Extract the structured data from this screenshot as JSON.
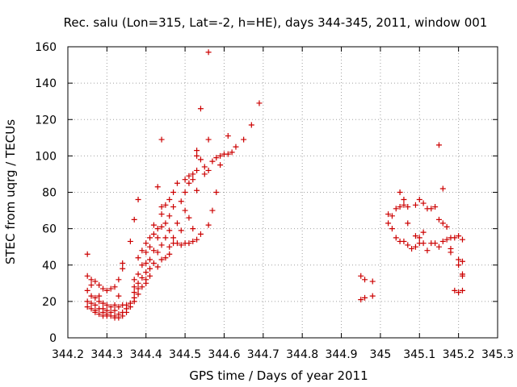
{
  "chart_data": {
    "type": "scatter",
    "title": "Rec. salu (Lon=315, Lat=-2, h=HE), days 344-345, 2011, window 001",
    "xlabel": "GPS time / Days of year 2011",
    "ylabel": "STEC from uqrg / TECUs",
    "xlim": [
      344.2,
      345.3
    ],
    "ylim": [
      0,
      160
    ],
    "xticks": [
      "344.2",
      "344.3",
      "344.4",
      "344.5",
      "344.6",
      "344.7",
      "344.8",
      "344.9",
      "345",
      "345.1",
      "345.2",
      "345.3"
    ],
    "xtick_values": [
      344.2,
      344.3,
      344.4,
      344.5,
      344.6,
      344.7,
      344.8,
      344.9,
      345.0,
      345.1,
      345.2,
      345.3
    ],
    "yticks": [
      "0",
      "20",
      "40",
      "60",
      "80",
      "100",
      "120",
      "140",
      "160"
    ],
    "ytick_values": [
      0,
      20,
      40,
      60,
      80,
      100,
      120,
      140,
      160
    ],
    "grid": true,
    "marker": "plus",
    "color": "#cc0000",
    "points": [
      [
        344.25,
        46
      ],
      [
        344.25,
        34
      ],
      [
        344.25,
        26
      ],
      [
        344.25,
        20
      ],
      [
        344.25,
        17
      ],
      [
        344.26,
        32
      ],
      [
        344.26,
        29
      ],
      [
        344.26,
        23
      ],
      [
        344.26,
        19
      ],
      [
        344.26,
        16
      ],
      [
        344.27,
        31
      ],
      [
        344.27,
        22
      ],
      [
        344.27,
        18
      ],
      [
        344.27,
        15
      ],
      [
        344.27,
        14
      ],
      [
        344.28,
        29
      ],
      [
        344.28,
        23
      ],
      [
        344.28,
        20
      ],
      [
        344.28,
        16
      ],
      [
        344.28,
        13
      ],
      [
        344.29,
        27
      ],
      [
        344.29,
        19
      ],
      [
        344.29,
        16
      ],
      [
        344.29,
        14
      ],
      [
        344.29,
        12
      ],
      [
        344.3,
        26
      ],
      [
        344.3,
        18
      ],
      [
        344.3,
        15
      ],
      [
        344.3,
        13
      ],
      [
        344.3,
        12
      ],
      [
        344.31,
        27
      ],
      [
        344.31,
        17
      ],
      [
        344.31,
        14
      ],
      [
        344.31,
        12
      ],
      [
        344.32,
        28
      ],
      [
        344.32,
        18
      ],
      [
        344.32,
        15
      ],
      [
        344.32,
        12
      ],
      [
        344.32,
        11
      ],
      [
        344.33,
        32
      ],
      [
        344.33,
        23
      ],
      [
        344.33,
        17
      ],
      [
        344.33,
        13
      ],
      [
        344.33,
        11
      ],
      [
        344.34,
        41
      ],
      [
        344.34,
        38
      ],
      [
        344.34,
        18
      ],
      [
        344.34,
        14
      ],
      [
        344.34,
        12
      ],
      [
        344.35,
        18
      ],
      [
        344.35,
        16
      ],
      [
        344.35,
        14
      ],
      [
        344.36,
        53
      ],
      [
        344.36,
        19
      ],
      [
        344.36,
        17
      ],
      [
        344.37,
        65
      ],
      [
        344.37,
        32
      ],
      [
        344.37,
        28
      ],
      [
        344.37,
        25
      ],
      [
        344.37,
        22
      ],
      [
        344.37,
        20
      ],
      [
        344.38,
        76
      ],
      [
        344.38,
        44
      ],
      [
        344.38,
        35
      ],
      [
        344.38,
        30
      ],
      [
        344.38,
        27
      ],
      [
        344.38,
        24
      ],
      [
        344.39,
        48
      ],
      [
        344.39,
        40
      ],
      [
        344.39,
        33
      ],
      [
        344.39,
        28
      ],
      [
        344.4,
        52
      ],
      [
        344.4,
        47
      ],
      [
        344.4,
        41
      ],
      [
        344.4,
        36
      ],
      [
        344.4,
        32
      ],
      [
        344.4,
        30
      ],
      [
        344.41,
        55
      ],
      [
        344.41,
        50
      ],
      [
        344.41,
        43
      ],
      [
        344.41,
        38
      ],
      [
        344.41,
        34
      ],
      [
        344.42,
        62
      ],
      [
        344.42,
        57
      ],
      [
        344.42,
        48
      ],
      [
        344.42,
        41
      ],
      [
        344.43,
        83
      ],
      [
        344.43,
        60
      ],
      [
        344.43,
        55
      ],
      [
        344.43,
        47
      ],
      [
        344.43,
        39
      ],
      [
        344.44,
        109
      ],
      [
        344.44,
        72
      ],
      [
        344.44,
        68
      ],
      [
        344.44,
        61
      ],
      [
        344.44,
        51
      ],
      [
        344.44,
        43
      ],
      [
        344.45,
        73
      ],
      [
        344.45,
        63
      ],
      [
        344.45,
        55
      ],
      [
        344.45,
        44
      ],
      [
        344.46,
        76
      ],
      [
        344.46,
        67
      ],
      [
        344.46,
        59
      ],
      [
        344.46,
        50
      ],
      [
        344.46,
        46
      ],
      [
        344.47,
        80
      ],
      [
        344.47,
        72
      ],
      [
        344.47,
        55
      ],
      [
        344.47,
        52
      ],
      [
        344.48,
        85
      ],
      [
        344.48,
        63
      ],
      [
        344.48,
        52
      ],
      [
        344.49,
        75
      ],
      [
        344.49,
        59
      ],
      [
        344.49,
        51
      ],
      [
        344.5,
        87
      ],
      [
        344.5,
        80
      ],
      [
        344.5,
        70
      ],
      [
        344.5,
        52
      ],
      [
        344.51,
        89
      ],
      [
        344.51,
        85
      ],
      [
        344.51,
        66
      ],
      [
        344.51,
        52
      ],
      [
        344.52,
        90
      ],
      [
        344.52,
        87
      ],
      [
        344.52,
        60
      ],
      [
        344.52,
        53
      ],
      [
        344.53,
        103
      ],
      [
        344.53,
        100
      ],
      [
        344.53,
        92
      ],
      [
        344.53,
        81
      ],
      [
        344.53,
        54
      ],
      [
        344.54,
        126
      ],
      [
        344.54,
        98
      ],
      [
        344.54,
        57
      ],
      [
        344.55,
        94
      ],
      [
        344.55,
        90
      ],
      [
        344.56,
        157
      ],
      [
        344.56,
        109
      ],
      [
        344.56,
        92
      ],
      [
        344.56,
        62
      ],
      [
        344.57,
        97
      ],
      [
        344.57,
        70
      ],
      [
        344.58,
        99
      ],
      [
        344.58,
        80
      ],
      [
        344.59,
        100
      ],
      [
        344.59,
        95
      ],
      [
        344.6,
        101
      ],
      [
        344.61,
        111
      ],
      [
        344.61,
        101
      ],
      [
        344.62,
        102
      ],
      [
        344.63,
        105
      ],
      [
        344.65,
        109
      ],
      [
        344.67,
        117
      ],
      [
        344.69,
        129
      ],
      [
        344.95,
        34
      ],
      [
        344.95,
        21
      ],
      [
        344.96,
        32
      ],
      [
        344.96,
        22
      ],
      [
        344.98,
        31
      ],
      [
        344.98,
        23
      ],
      [
        345.02,
        68
      ],
      [
        345.02,
        63
      ],
      [
        345.03,
        67
      ],
      [
        345.03,
        60
      ],
      [
        345.04,
        71
      ],
      [
        345.04,
        55
      ],
      [
        345.05,
        80
      ],
      [
        345.05,
        72
      ],
      [
        345.05,
        53
      ],
      [
        345.06,
        76
      ],
      [
        345.06,
        73
      ],
      [
        345.06,
        53
      ],
      [
        345.07,
        72
      ],
      [
        345.07,
        63
      ],
      [
        345.07,
        51
      ],
      [
        345.08,
        49
      ],
      [
        345.09,
        73
      ],
      [
        345.09,
        56
      ],
      [
        345.09,
        50
      ],
      [
        345.1,
        76
      ],
      [
        345.1,
        55
      ],
      [
        345.1,
        52
      ],
      [
        345.11,
        74
      ],
      [
        345.11,
        58
      ],
      [
        345.11,
        52
      ],
      [
        345.12,
        71
      ],
      [
        345.12,
        48
      ],
      [
        345.13,
        71
      ],
      [
        345.13,
        52
      ],
      [
        345.14,
        72
      ],
      [
        345.14,
        52
      ],
      [
        345.15,
        106
      ],
      [
        345.15,
        65
      ],
      [
        345.15,
        50
      ],
      [
        345.16,
        82
      ],
      [
        345.16,
        63
      ],
      [
        345.16,
        53
      ],
      [
        345.17,
        61
      ],
      [
        345.17,
        54
      ],
      [
        345.18,
        55
      ],
      [
        345.18,
        49
      ],
      [
        345.18,
        47
      ],
      [
        345.19,
        55
      ],
      [
        345.19,
        26
      ],
      [
        345.2,
        56
      ],
      [
        345.2,
        43
      ],
      [
        345.2,
        40
      ],
      [
        345.2,
        25
      ],
      [
        345.21,
        54
      ],
      [
        345.21,
        42
      ],
      [
        345.21,
        35
      ],
      [
        345.21,
        34
      ],
      [
        345.21,
        26
      ]
    ]
  }
}
